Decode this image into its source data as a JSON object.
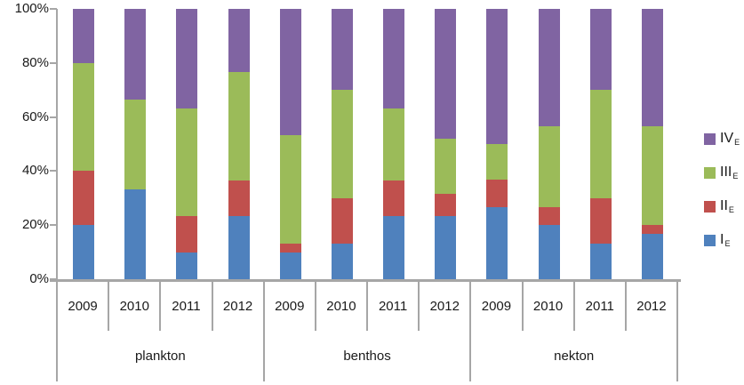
{
  "chart_data": {
    "type": "bar",
    "variant": "stacked-100-percent",
    "title": "",
    "xlabel": "",
    "ylabel": "",
    "ylim": [
      0,
      100
    ],
    "grid": false,
    "legend_position": "right",
    "yticks": [
      "0%",
      "20%",
      "40%",
      "60%",
      "80%",
      "100%"
    ],
    "groups": [
      "plankton",
      "benthos",
      "nekton"
    ],
    "categories": [
      "2009",
      "2010",
      "2011",
      "2012"
    ],
    "series": [
      {
        "name": "I",
        "subscript": "E",
        "color": "#4f81bd",
        "values": {
          "plankton": [
            20,
            33.3,
            10,
            23.3
          ],
          "benthos": [
            10,
            13.3,
            23.3,
            23.3
          ],
          "nekton": [
            26.7,
            20,
            13.3,
            16.7
          ]
        }
      },
      {
        "name": "II",
        "subscript": "E",
        "color": "#c0504d",
        "values": {
          "plankton": [
            20,
            0,
            13.3,
            13.3
          ],
          "benthos": [
            3.3,
            16.7,
            13.3,
            8.4
          ],
          "nekton": [
            10,
            6.7,
            16.7,
            3.3
          ]
        }
      },
      {
        "name": "III",
        "subscript": "E",
        "color": "#9bbb59",
        "values": {
          "plankton": [
            40,
            33.3,
            40,
            40
          ],
          "benthos": [
            40,
            40,
            26.7,
            20.3
          ],
          "nekton": [
            13.3,
            30,
            40,
            36.7
          ]
        }
      },
      {
        "name": "IV",
        "subscript": "E",
        "color": "#8064a2",
        "values": {
          "plankton": [
            20,
            33.4,
            36.7,
            23.4
          ],
          "benthos": [
            46.7,
            30,
            36.7,
            48
          ],
          "nekton": [
            50,
            43.3,
            30,
            43.3
          ]
        }
      }
    ],
    "legend_order": [
      "IV",
      "III",
      "II",
      "I"
    ],
    "colors": {
      "axis_line": "#a6a6a6",
      "text": "#1a1a1a",
      "background": "#ffffff"
    }
  }
}
